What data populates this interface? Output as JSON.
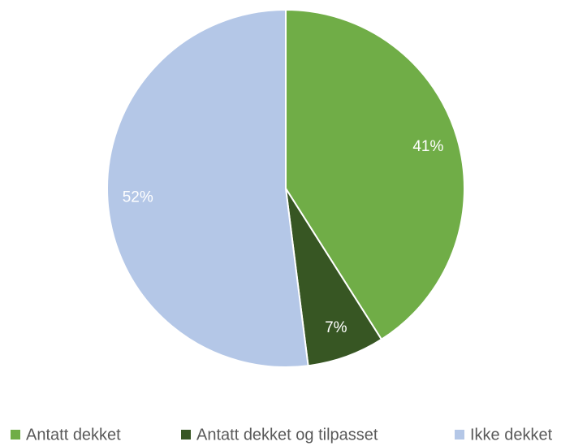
{
  "chart_data": {
    "type": "pie",
    "categories": [
      "Antatt dekket",
      "Antatt dekket og tilpasset",
      "Ikke dekket"
    ],
    "values": [
      41,
      7,
      52
    ],
    "value_labels": [
      "41%",
      "7%",
      "52%"
    ],
    "colors": [
      "#70ad47",
      "#375623",
      "#b4c7e7"
    ],
    "legend": "bottom"
  }
}
